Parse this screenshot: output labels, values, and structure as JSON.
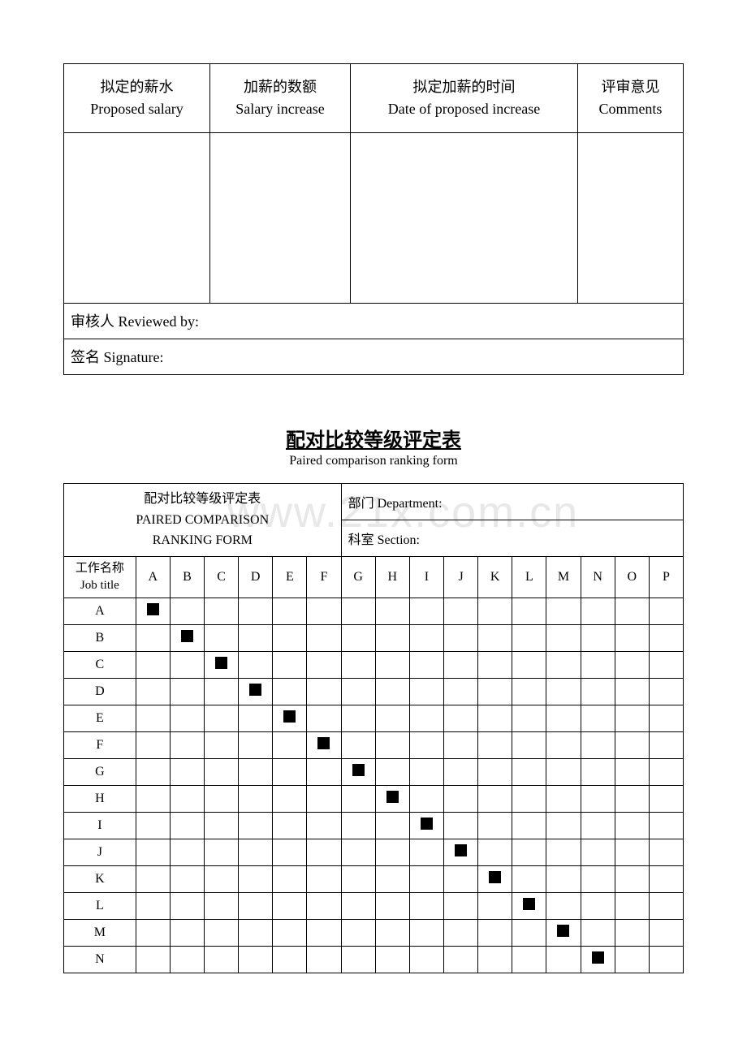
{
  "table1": {
    "headers": [
      {
        "cn": "拟定的薪水",
        "en": "Proposed salary"
      },
      {
        "cn": "加薪的数额",
        "en": "Salary increase"
      },
      {
        "cn": "拟定加薪的时间",
        "en": "Date of proposed increase"
      },
      {
        "cn": "评审意见",
        "en": "Comments"
      }
    ],
    "reviewed_by": "审核人 Reviewed by:",
    "signature": "签名 Signature:"
  },
  "section2": {
    "title_cn": "配对比较等级评定表",
    "title_en": "Paired comparison ranking form",
    "form_title_cn": "配对比较等级评定表",
    "form_title_en1": "PAIRED COMPARISON",
    "form_title_en2": "RANKING FORM",
    "department": "部门 Department:",
    "section": "科室 Section:",
    "job_title_cn": "工作名称",
    "job_title_en": "Job title",
    "columns": [
      "A",
      "B",
      "C",
      "D",
      "E",
      "F",
      "G",
      "H",
      "I",
      "J",
      "K",
      "L",
      "M",
      "N",
      "O",
      "P"
    ],
    "rows": [
      "A",
      "B",
      "C",
      "D",
      "E",
      "F",
      "G",
      "H",
      "I",
      "J",
      "K",
      "L",
      "M",
      "N"
    ],
    "diagonal_marks": {
      "A": 0,
      "B": 1,
      "C": 2,
      "D": 3,
      "E": 4,
      "F": 5,
      "G": 6,
      "H": 7,
      "I": 8,
      "J": 9,
      "K": 10,
      "L": 11,
      "M": 12,
      "N": 13
    }
  },
  "watermark_text": "www.21x.com.cn",
  "colors": {
    "text": "#000000",
    "border": "#000000",
    "background": "#ffffff",
    "watermark": "#e8e8e8"
  }
}
